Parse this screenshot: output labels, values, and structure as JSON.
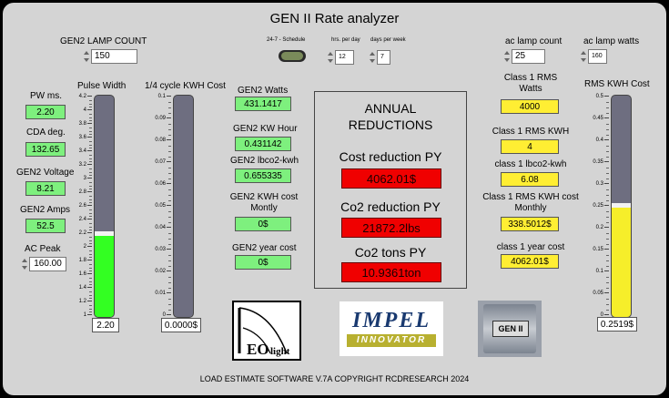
{
  "title": "GEN II Rate analyzer",
  "footer": "LOAD ESTIMATE SOFTWARE V.7A COPYRIGHT RCDRESEARCH 2024",
  "lamp_count": {
    "label": "GEN2 LAMP COUNT",
    "value": "150"
  },
  "schedule": {
    "label": "24-7 - Schedule",
    "hrs_label": "hrs. per day",
    "hrs_value": "12",
    "days_label": "days per week",
    "days_value": "7"
  },
  "ac_lamp_count": {
    "label": "ac lamp count",
    "value": "25"
  },
  "ac_lamp_watts": {
    "label": "ac lamp watts",
    "value": "160"
  },
  "left": {
    "pw": {
      "label": "PW ms.",
      "value": "2.20"
    },
    "cda": {
      "label": "CDA deg.",
      "value": "132.65"
    },
    "voltage": {
      "label": "GEN2 Voltage",
      "value": "8.21"
    },
    "amps": {
      "label": "GEN2 Amps",
      "value": "52.5"
    },
    "ac_peak": {
      "label": "AC Peak",
      "value": "160.00"
    }
  },
  "pulse_width": {
    "label": "Pulse Width",
    "value": "2.20",
    "level": 2.2,
    "max": 4.2,
    "ticks": [
      "4.2",
      "4",
      "3.8",
      "3.6",
      "3.4",
      "3.2",
      "3",
      "2.8",
      "2.6",
      "2.4",
      "2.2",
      "2",
      "1.8",
      "1.6",
      "1.4",
      "1.2",
      "1"
    ]
  },
  "quarter_kwh": {
    "label": "1/4 cycle KWH Cost",
    "value": "0.0000$",
    "level": 0,
    "max": 0.1,
    "ticks": [
      "0.1",
      "0.09",
      "0.08",
      "0.07",
      "0.06",
      "0.05",
      "0.04",
      "0.03",
      "0.02",
      "0.01",
      "0"
    ]
  },
  "gen2": {
    "watts": {
      "label": "GEN2 Watts",
      "value": "431.1417"
    },
    "kw_hour": {
      "label": "GEN2 KW Hour",
      "value": "0.431142"
    },
    "lbco2": {
      "label": "GEN2 lbco2-kwh",
      "value": "0.655335"
    },
    "kwh_cost": {
      "label": "GEN2 KWH cost Montly",
      "value": "0$"
    },
    "year_cost": {
      "label": "GEN2 year cost",
      "value": "0$"
    }
  },
  "annual": {
    "title": "ANNUAL REDUCTIONS",
    "cost_label": "Cost reduction PY",
    "cost_value": "4062.01$",
    "co2_label": "Co2 reduction PY",
    "co2_value": "21872.2lbs",
    "tons_label": "Co2 tons PY",
    "tons_value": "10.9361ton"
  },
  "class1": {
    "rms_watts": {
      "label": "Class 1 RMS Watts",
      "value": "4000"
    },
    "rms_kwh": {
      "label": "Class 1 RMS KWH",
      "value": "4"
    },
    "lbco2": {
      "label": "class 1 lbco2-kwh",
      "value": "6.08"
    },
    "kwh_cost": {
      "label": "Class 1 RMS KWH cost Monthly",
      "value": "338.5012$"
    },
    "year_cost": {
      "label": "class 1 year cost",
      "value": "4062.01$"
    }
  },
  "rms_cost": {
    "label": "RMS KWH Cost",
    "value": "0.2519$",
    "level": 0.2519,
    "max": 0.5,
    "ticks": [
      "0.5",
      "0.45",
      "0.4",
      "0.35",
      "0.3",
      "0.25",
      "0.2",
      "0.15",
      "0.1",
      "0.05",
      "0"
    ]
  },
  "logos": {
    "eo": "EO light",
    "impel_top": "IMPEL",
    "impel_bottom": "INNOVATOR",
    "gen": "GEN II"
  },
  "colors": {
    "green_indicator": "#7ef07e",
    "yellow_indicator": "#ffee33",
    "red_indicator": "#f00000",
    "panel_bg": "#d4d4d4",
    "tank_empty": "#6e6e80"
  }
}
